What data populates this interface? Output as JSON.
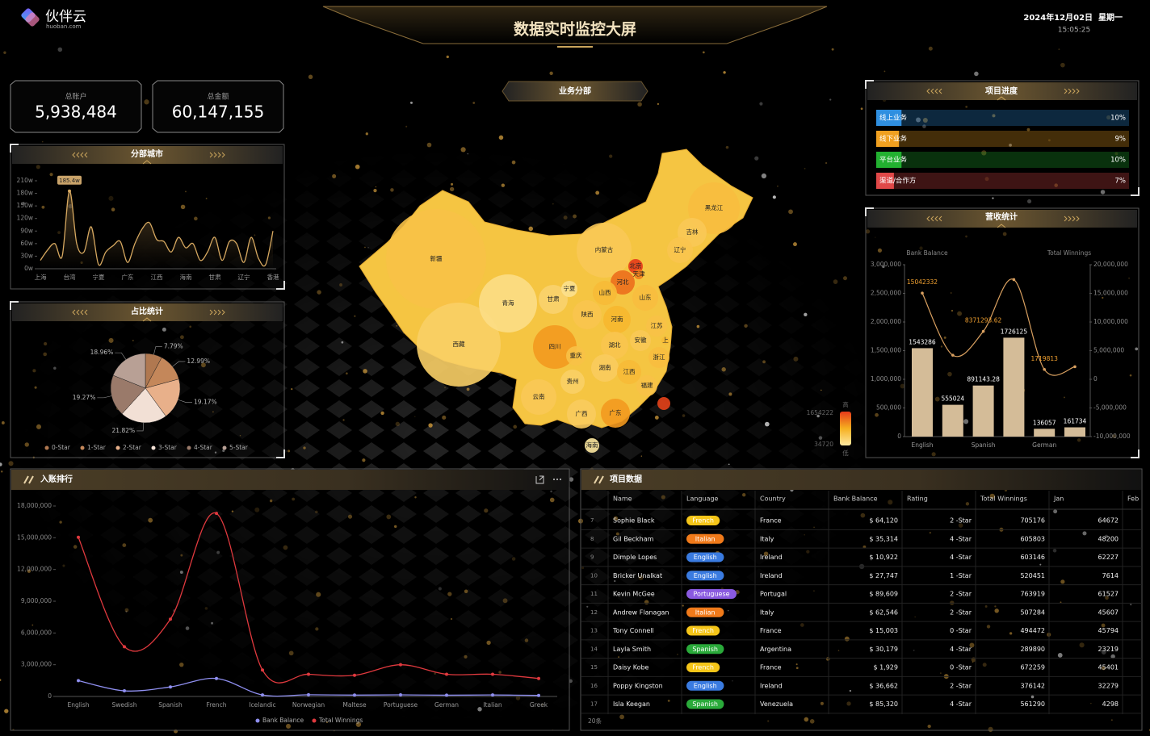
{
  "header": {
    "logo": "伙伴云",
    "logo_sub": "huoban.com",
    "title": "数据实时监控大屏",
    "date": "2024年12月02日  星期一",
    "time": "15:05:25"
  },
  "kpis": [
    {
      "label": "总账户",
      "value": "5,938,484"
    },
    {
      "label": "总金额",
      "value": "60,147,155"
    }
  ],
  "chart_data": [
    {
      "type": "line",
      "title": "分部城市",
      "categories": [
        "上海",
        null,
        null,
        null,
        "台湾",
        null,
        null,
        null,
        "宁夏",
        null,
        null,
        null,
        "广东",
        null,
        null,
        null,
        "江西",
        null,
        null,
        null,
        "海南",
        null,
        null,
        null,
        "甘肃",
        null,
        null,
        null,
        "辽宁",
        null,
        null,
        null,
        "香港"
      ],
      "values": [
        20,
        45,
        60,
        30,
        185.4,
        60,
        40,
        100,
        10,
        40,
        55,
        65,
        15,
        60,
        95,
        110,
        70,
        65,
        40,
        75,
        50,
        60,
        20,
        40,
        75,
        20,
        65,
        60,
        15,
        75,
        25,
        10,
        90
      ],
      "value_labels": [
        null,
        null,
        null,
        null,
        "185.4w",
        null,
        null,
        null,
        null,
        null,
        null,
        null,
        null,
        null,
        null,
        null,
        null,
        null,
        null,
        null,
        null,
        null,
        null,
        null,
        null,
        null,
        null,
        null,
        null,
        null,
        null,
        null,
        null
      ],
      "color": "#d6a860",
      "area": true,
      "ylim": [
        0,
        210
      ],
      "yticks": [
        {
          "value": 0,
          "label": "0w"
        },
        {
          "value": 30,
          "label": "30w"
        },
        {
          "value": 60,
          "label": "60w"
        },
        {
          "value": 90,
          "label": "90w"
        },
        {
          "value": 120,
          "label": "120w"
        },
        {
          "value": 150,
          "label": "150w"
        },
        {
          "value": 180,
          "label": "180w"
        },
        {
          "value": 210,
          "label": "210w"
        }
      ]
    },
    {
      "type": "pie",
      "title": "占比统计",
      "categories": [
        "0-Star",
        "1-Star",
        "2-Star",
        "3-Star",
        "4-Star",
        "5-Star"
      ],
      "values": [
        7.79,
        12.99,
        19.17,
        21.82,
        19.27,
        18.96
      ],
      "value_labels": [
        "7.79%",
        "12.99%",
        "19.17%",
        "21.82%",
        "19.27%",
        "18.96%"
      ],
      "colors": [
        "#b07850",
        "#c4875a",
        "#e8b08a",
        "#f2e0d5",
        "#9a7a6a",
        "#b8a095"
      ]
    },
    {
      "type": "map",
      "title": "业务分部",
      "regions": [
        {
          "name": "新疆",
          "value": 600000
        },
        {
          "name": "西藏",
          "value": 400000
        },
        {
          "name": "青海",
          "value": 200000
        },
        {
          "name": "甘肃",
          "value": 350000
        },
        {
          "name": "宁夏",
          "value": 150000
        },
        {
          "name": "内蒙古",
          "value": 500000
        },
        {
          "name": "黑龙江",
          "value": 650000
        },
        {
          "name": "吉林",
          "value": 500000
        },
        {
          "name": "辽宁",
          "value": 550000
        },
        {
          "name": "北京",
          "value": 1654222
        },
        {
          "name": "天津",
          "value": 1200000
        },
        {
          "name": "河北",
          "value": 1300000
        },
        {
          "name": "山西",
          "value": 700000
        },
        {
          "name": "陕西",
          "value": 550000
        },
        {
          "name": "山东",
          "value": 650000
        },
        {
          "name": "河南",
          "value": 750000
        },
        {
          "name": "江苏",
          "value": 600000
        },
        {
          "name": "上",
          "value": 700000
        },
        {
          "name": "安徽",
          "value": 500000
        },
        {
          "name": "湖北",
          "value": 550000
        },
        {
          "name": "四川",
          "value": 1000000
        },
        {
          "name": "重庆",
          "value": 600000
        },
        {
          "name": "浙江",
          "value": 650000
        },
        {
          "name": "湖南",
          "value": 450000
        },
        {
          "name": "江西",
          "value": 700000
        },
        {
          "name": "贵州",
          "value": 400000
        },
        {
          "name": "云南",
          "value": 500000
        },
        {
          "name": "广西",
          "value": 450000
        },
        {
          "name": "广东",
          "value": 1000000
        },
        {
          "name": "福建",
          "value": 600000
        },
        {
          "name": "海南",
          "value": 34720
        },
        {
          "name": null,
          "value": 1600000
        }
      ],
      "legend": {
        "max": 1654222,
        "min": 34720,
        "high_label": "高",
        "low_label": "低"
      },
      "colors": [
        "#fde8a0",
        "#f6b020",
        "#e53a1a"
      ]
    },
    {
      "type": "progress",
      "title": "项目进度",
      "categories": [
        "线上业务",
        "线下业务",
        "平台业务",
        "渠道/合作方"
      ],
      "values": [
        10,
        9,
        10,
        7
      ],
      "value_labels": [
        "10%",
        "9%",
        "10%",
        "7%"
      ],
      "colors": [
        "#2f8fe0",
        "#f0a020",
        "#22b030",
        "#e04848"
      ]
    },
    {
      "type": "bar",
      "title": "营收统计",
      "categories": [
        "English",
        null,
        "Spanish",
        null,
        "German",
        null
      ],
      "ylabel": "Bank Balance",
      "y2label": "Total Winnings",
      "series": [
        {
          "type": "bar",
          "color": "#d4bc98",
          "values": [
            1543286,
            555024,
            891143.28,
            1726125,
            136057,
            161734
          ]
        },
        {
          "type": "line",
          "axis": "y2",
          "color": "#d9a060",
          "label_color": "#f0a030",
          "values": [
            15042332,
            4200000,
            8371293.62,
            17400000,
            1719813,
            2200000
          ],
          "value_labels": [
            "15042332",
            null,
            "8371293.62",
            null,
            "1719813",
            null
          ]
        }
      ],
      "ylim": [
        0,
        3000000
      ],
      "yticks": [
        0,
        {
          "value": 500000,
          "label": "500,000"
        },
        {
          "value": 1000000,
          "label": "1,000,000"
        },
        {
          "value": 1500000,
          "label": "1,500,000"
        },
        {
          "value": 2000000,
          "label": "2,000,000"
        },
        {
          "value": 2500000,
          "label": "2,500,000"
        },
        {
          "value": 3000000,
          "label": "3,000,000"
        }
      ],
      "y2lim": [
        -10000000,
        20000000
      ],
      "y2ticks": [
        {
          "value": -10000000,
          "label": "-10,000,000"
        },
        {
          "value": -5000000,
          "label": "-5,000,000"
        },
        0,
        {
          "value": 5000000,
          "label": "5,000,000"
        },
        {
          "value": 10000000,
          "label": "10,000,000"
        },
        {
          "value": 15000000,
          "label": "15,000,000"
        },
        {
          "value": 20000000,
          "label": "20,000,000"
        }
      ]
    },
    {
      "type": "line",
      "title": "入账排行",
      "categories": [
        "English",
        "Swedish",
        "Spanish",
        "French",
        "Icelandic",
        "Norwegian",
        "Maltese",
        "Portuguese",
        "German",
        "Italian",
        "Greek"
      ],
      "series": [
        {
          "name": "Bank Balance",
          "color": "#8f8ff0",
          "values": [
            1500000,
            530000,
            900000,
            1700000,
            140000,
            160000,
            130000,
            150000,
            120000,
            140000,
            100000
          ]
        },
        {
          "name": "Total Winnings",
          "color": "#e0393e",
          "values": [
            15042332,
            4700000,
            7300000,
            17300000,
            2500000,
            2100000,
            2000000,
            3000000,
            2100000,
            2100000,
            1700000
          ]
        }
      ],
      "markers": true,
      "legend": "bottom",
      "ylim": [
        0,
        18000000
      ],
      "yticks": [
        0,
        {
          "value": 3000000,
          "label": "3,000,000"
        },
        {
          "value": 6000000,
          "label": "6,000,000"
        },
        {
          "value": 9000000,
          "label": "9,000,000"
        },
        {
          "value": 12000000,
          "label": "12,000,000"
        },
        {
          "value": 15000000,
          "label": "15,000,000"
        },
        {
          "value": 18000000,
          "label": "18,000,000"
        }
      ]
    }
  ],
  "table": {
    "title": "项目数据",
    "columns": [
      "Name",
      "Language",
      "Country",
      "Bank Balance",
      "Rating",
      "Total Winnings",
      "Jan",
      "Feb"
    ],
    "rows": [
      [
        "7",
        "Sophie Black",
        "French",
        "France",
        "$ 64,120",
        "2 -Star",
        "705176",
        "64672"
      ],
      [
        "8",
        "Gil Beckham",
        "Italian",
        "Italy",
        "$ 35,314",
        "4 -Star",
        "605803",
        "48200"
      ],
      [
        "9",
        "Dimple Lopes",
        "English",
        "Ireland",
        "$ 10,922",
        "4 -Star",
        "603146",
        "62227"
      ],
      [
        "10",
        "Bricker Unalkat",
        "English",
        "Ireland",
        "$ 27,747",
        "1 -Star",
        "520451",
        "7614"
      ],
      [
        "11",
        "Kevin McGee",
        "Portuguese",
        "Portugal",
        "$ 89,609",
        "2 -Star",
        "763919",
        "61527"
      ],
      [
        "12",
        "Andrew Flanagan",
        "Italian",
        "Italy",
        "$ 62,546",
        "2 -Star",
        "507284",
        "45607"
      ],
      [
        "13",
        "Tony Connell",
        "French",
        "France",
        "$ 15,003",
        "0 -Star",
        "494472",
        "45794"
      ],
      [
        "14",
        "Layla Smith",
        "Spanish",
        "Argentina",
        "$ 30,179",
        "4 -Star",
        "289890",
        "23219"
      ],
      [
        "15",
        "Daisy Kobe",
        "French",
        "France",
        "$ 1,929",
        "0 -Star",
        "672259",
        "45401"
      ],
      [
        "16",
        "Poppy Kingston",
        "English",
        "Ireland",
        "$ 36,662",
        "2 -Star",
        "376142",
        "32279"
      ],
      [
        "17",
        "Isla Keegan",
        "Spanish",
        "Venezuela",
        "$ 85,320",
        "4 -Star",
        "561290",
        "4298"
      ]
    ],
    "footer": "20条",
    "language_colors": {
      "French": "#f5c518",
      "Italian": "#f07a1a",
      "English": "#3a7be0",
      "Portuguese": "#8a5ae0",
      "Spanish": "#2aaa3a"
    }
  }
}
